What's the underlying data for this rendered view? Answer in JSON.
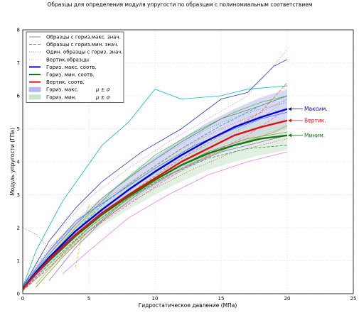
{
  "chart_data": {
    "type": "line",
    "title": "Образцы для определения модуля упругости по образцам с полиномиальным соответствием",
    "xlabel": "Гидростатическое давление (МПа)",
    "ylabel": "Модуль упругости (ГПа)",
    "xlim": [
      0,
      25
    ],
    "ylim": [
      0,
      8
    ],
    "xticks": [
      "0",
      "5",
      "10",
      "15",
      "20",
      "25"
    ],
    "yticks": [
      "0",
      "1",
      "2",
      "3",
      "4",
      "5",
      "6",
      "7",
      "8"
    ],
    "grid": true,
    "legend_position": "top-left",
    "legend": [
      {
        "label": "Образцы с гориз.макс. знач.",
        "style": "solid",
        "color": "#7f7f7f",
        "kind": "line"
      },
      {
        "label": "Образцы с гориз.мин. знач.",
        "style": "dashed",
        "color": "#7f7f7f",
        "kind": "line"
      },
      {
        "label": "Один. образцы с гориз. знач.",
        "style": "dotted",
        "color": "#7f7f7f",
        "kind": "line"
      },
      {
        "label": "Вертик.образцы",
        "style": "dotted",
        "color": "#c0c0c0",
        "kind": "line"
      },
      {
        "label": "Гориз. макс. соотв.",
        "style": "solid",
        "color": "#0000dd",
        "kind": "thick"
      },
      {
        "label": "Гориз. мин. соотв.",
        "style": "solid",
        "color": "#117711",
        "kind": "thick"
      },
      {
        "label": "Вертик. соотв.",
        "style": "solid",
        "color": "#dd1111",
        "kind": "thick"
      },
      {
        "label": "Гориз. макс.",
        "extra": "μ ± σ",
        "color": "#b8b8f0",
        "kind": "patch"
      },
      {
        "label": "Гориз. мин.",
        "extra": "μ ± σ",
        "color": "#c8e4c8",
        "kind": "patch"
      }
    ],
    "fits": [
      {
        "name": "Гориз. макс. соотв.",
        "color": "#0000dd",
        "x": [
          0,
          1,
          2,
          4,
          6,
          8,
          10,
          12,
          14,
          16,
          18,
          20
        ],
        "y": [
          0.15,
          0.65,
          1.1,
          1.9,
          2.55,
          3.15,
          3.7,
          4.2,
          4.65,
          5.05,
          5.35,
          5.6
        ]
      },
      {
        "name": "Гориз. мин. соотв.",
        "color": "#117711",
        "x": [
          0,
          1,
          2,
          4,
          6,
          8,
          10,
          12,
          14,
          16,
          18,
          20
        ],
        "y": [
          0.15,
          0.6,
          1.0,
          1.75,
          2.4,
          2.95,
          3.45,
          3.9,
          4.25,
          4.5,
          4.7,
          4.8
        ]
      },
      {
        "name": "Вертик. соотв.",
        "color": "#dd1111",
        "x": [
          0,
          1,
          2,
          4,
          6,
          8,
          10,
          12,
          14,
          16,
          18,
          20
        ],
        "y": [
          0.15,
          0.6,
          1.05,
          1.8,
          2.45,
          3.0,
          3.5,
          4.0,
          4.4,
          4.8,
          5.05,
          5.25
        ]
      }
    ],
    "bands": [
      {
        "name": "Гориз. макс.",
        "color": "#b8b8f0",
        "x": [
          0,
          2,
          4,
          6,
          8,
          10,
          12,
          14,
          16,
          18,
          20
        ],
        "lower": [
          0.05,
          0.85,
          1.6,
          2.2,
          2.75,
          3.25,
          3.7,
          4.1,
          4.45,
          4.75,
          5.0
        ],
        "upper": [
          0.3,
          1.35,
          2.2,
          2.9,
          3.55,
          4.15,
          4.7,
          5.2,
          5.6,
          5.95,
          6.2
        ]
      },
      {
        "name": "Гориз. мин.",
        "color": "#c8e4c8",
        "x": [
          0,
          2,
          4,
          6,
          8,
          10,
          12,
          14,
          16,
          18,
          20
        ],
        "lower": [
          0.05,
          0.75,
          1.45,
          2.05,
          2.55,
          3.0,
          3.4,
          3.75,
          4.0,
          4.2,
          4.35
        ],
        "upper": [
          0.3,
          1.25,
          2.05,
          2.75,
          3.35,
          3.9,
          4.4,
          4.75,
          5.0,
          5.2,
          5.3
        ]
      }
    ],
    "samples": [
      {
        "color": "#00bcbc",
        "style": "solid",
        "x": [
          0,
          1,
          3,
          6,
          8,
          10,
          12,
          15,
          17,
          20
        ],
        "y": [
          0.2,
          1.3,
          2.8,
          4.5,
          5.2,
          6.2,
          5.9,
          6.0,
          6.2,
          6.3
        ]
      },
      {
        "color": "#1f3fbf",
        "style": "solid",
        "x": [
          0,
          2,
          4,
          6,
          9,
          12,
          15,
          17,
          19,
          20
        ],
        "y": [
          0.2,
          1.6,
          2.6,
          3.4,
          4.3,
          5.0,
          5.9,
          6.1,
          6.9,
          7.1
        ]
      },
      {
        "color": "#3ec83e",
        "style": "solid",
        "x": [
          0,
          2,
          4,
          7,
          10,
          13,
          16,
          18,
          20
        ],
        "y": [
          0.1,
          1.1,
          2.0,
          3.2,
          4.2,
          4.9,
          5.5,
          5.8,
          6.0
        ]
      },
      {
        "color": "#777777",
        "style": "solid",
        "x": [
          0,
          2,
          4,
          6,
          9,
          12,
          15,
          18,
          20
        ],
        "y": [
          0.2,
          1.2,
          2.1,
          2.9,
          3.8,
          4.6,
          5.3,
          5.7,
          6.0
        ]
      },
      {
        "color": "#d070d0",
        "style": "dotted",
        "x": [
          0,
          2,
          5,
          8,
          11,
          14,
          17,
          20
        ],
        "y": [
          0.1,
          1.6,
          2.9,
          3.8,
          4.6,
          5.3,
          6.0,
          7.4
        ]
      },
      {
        "color": "#e07030",
        "style": "dashed",
        "x": [
          0,
          2,
          4,
          6,
          9,
          12,
          15,
          18,
          20
        ],
        "y": [
          0.2,
          1.0,
          1.8,
          2.4,
          3.3,
          4.1,
          4.8,
          5.5,
          6.4
        ]
      },
      {
        "color": "#8080ff",
        "style": "dotted",
        "x": [
          0,
          3,
          6,
          9,
          12,
          15,
          18,
          20
        ],
        "y": [
          0.1,
          1.4,
          2.5,
          3.4,
          4.1,
          4.7,
          5.3,
          5.9
        ]
      },
      {
        "color": "#7a9a3a",
        "style": "solid",
        "x": [
          1,
          3,
          5,
          8,
          11,
          14,
          17,
          20
        ],
        "y": [
          0.2,
          1.1,
          1.9,
          2.9,
          3.7,
          4.3,
          4.7,
          4.9
        ]
      },
      {
        "color": "#ff60a0",
        "style": "dashed",
        "x": [
          0,
          2,
          5,
          8,
          11,
          14,
          17,
          20
        ],
        "y": [
          0.1,
          0.8,
          1.9,
          2.7,
          3.5,
          4.2,
          4.8,
          5.6
        ]
      },
      {
        "color": "#20a0a0",
        "style": "dashed",
        "x": [
          0,
          3,
          6,
          9,
          12,
          15,
          18,
          20
        ],
        "y": [
          0.2,
          1.5,
          2.7,
          3.6,
          4.4,
          5.1,
          5.7,
          6.0
        ]
      },
      {
        "color": "#b0b030",
        "style": "solid",
        "x": [
          1,
          3,
          5,
          7,
          10,
          13,
          16,
          19,
          20
        ],
        "y": [
          0.3,
          1.2,
          2.0,
          2.6,
          3.4,
          4.0,
          4.5,
          4.9,
          5.1
        ]
      },
      {
        "color": "#4070ff",
        "style": "solid",
        "x": [
          0,
          2,
          4,
          7,
          10,
          13,
          16,
          18,
          20
        ],
        "y": [
          0.2,
          1.3,
          2.2,
          3.0,
          3.8,
          4.5,
          5.0,
          5.3,
          5.5
        ]
      },
      {
        "color": "#2e8b57",
        "style": "dashed",
        "x": [
          0,
          2,
          5,
          8,
          11,
          14,
          17,
          20
        ],
        "y": [
          0.1,
          0.9,
          2.0,
          2.9,
          3.6,
          4.1,
          4.4,
          4.5
        ]
      },
      {
        "color": "#9370db",
        "style": "solid",
        "x": [
          2,
          4,
          6,
          9,
          12,
          15,
          18,
          20
        ],
        "y": [
          0.4,
          1.4,
          2.2,
          3.1,
          3.8,
          4.3,
          4.6,
          4.8
        ]
      },
      {
        "color": "#40c0ff",
        "style": "dotted",
        "x": [
          0,
          3,
          6,
          9,
          12,
          15,
          18,
          20
        ],
        "y": [
          0.2,
          1.7,
          2.9,
          3.9,
          4.6,
          5.2,
          5.6,
          5.8
        ]
      },
      {
        "color": "#a0522d",
        "style": "dotted",
        "x": [
          0,
          2,
          4,
          7,
          10,
          13,
          16,
          19,
          20
        ],
        "y": [
          0.1,
          0.8,
          1.6,
          2.5,
          3.2,
          3.8,
          4.3,
          4.6,
          4.7
        ]
      },
      {
        "color": "#ee82ee",
        "style": "solid",
        "x": [
          3,
          5,
          8,
          11,
          14,
          17,
          20
        ],
        "y": [
          0.6,
          1.3,
          2.3,
          3.0,
          3.6,
          4.0,
          4.3
        ]
      },
      {
        "color": "#66cc66",
        "style": "dotted",
        "x": [
          0,
          2,
          5,
          8,
          11,
          14,
          17,
          20
        ],
        "y": [
          0.2,
          1.4,
          2.6,
          3.5,
          4.3,
          5.0,
          5.5,
          5.8
        ]
      },
      {
        "color": "#ff4040",
        "style": "dotted",
        "x": [
          0,
          1,
          2,
          4,
          6,
          9,
          12,
          15,
          18,
          20
        ],
        "y": [
          2.0,
          1.8,
          1.4,
          2.1,
          2.8,
          3.6,
          4.4,
          5.0,
          5.5,
          5.9
        ]
      },
      {
        "color": "#c8c832",
        "style": "dashed",
        "x": [
          4,
          4.5,
          5,
          5.5
        ],
        "y": [
          0.8,
          1.9,
          2.7,
          2.3
        ]
      }
    ],
    "annotations": [
      {
        "text": "Максим.",
        "color": "#0000dd",
        "x": 20,
        "y": 5.6
      },
      {
        "text": "Вертик.",
        "color": "#dd1111",
        "x": 20,
        "y": 5.25
      },
      {
        "text": "Миним.",
        "color": "#117711",
        "x": 20,
        "y": 4.8
      }
    ]
  }
}
